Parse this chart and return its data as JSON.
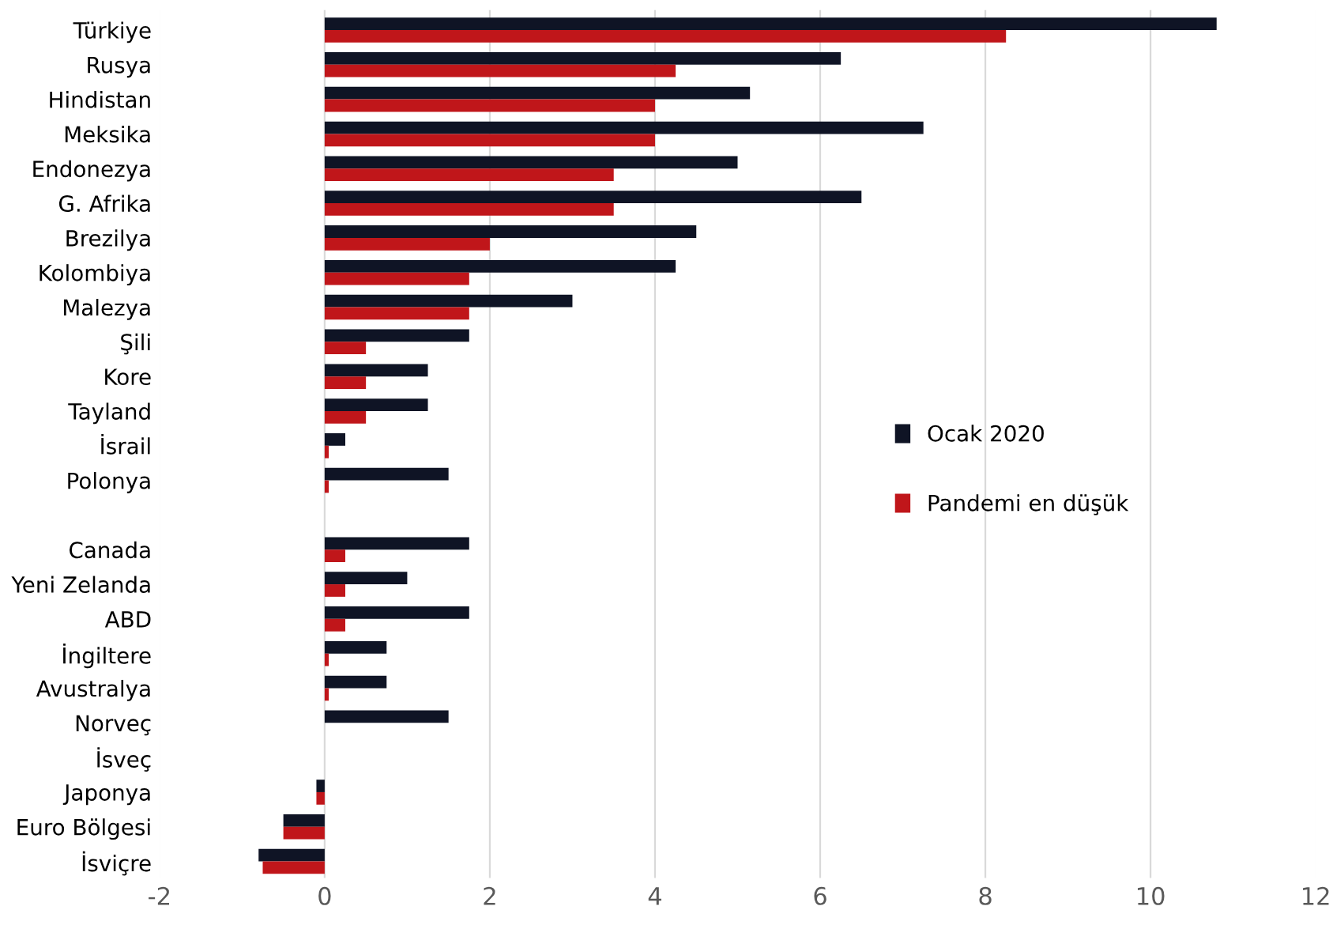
{
  "chart_data": {
    "type": "bar",
    "orientation": "horizontal",
    "categories": [
      "Türkiye",
      "Rusya",
      "Hindistan",
      "Meksika",
      "Endonezya",
      "G. Afrika",
      "Brezilya",
      "Kolombiya",
      "Malezya",
      "Şili",
      "Kore",
      "Tayland",
      "İsrail",
      "Polonya",
      null,
      "Canada",
      "Yeni Zelanda",
      "ABD",
      "İngiltere",
      "Avustralya",
      "Norveç",
      "İsveç",
      "Japonya",
      "Euro Bölgesi",
      "İsviçre"
    ],
    "series": [
      {
        "name": "Ocak 2020",
        "color": "#0f1425",
        "values": [
          10.8,
          6.25,
          5.15,
          7.25,
          5.0,
          6.5,
          4.5,
          4.25,
          3.0,
          1.75,
          1.25,
          1.25,
          0.25,
          1.5,
          null,
          1.75,
          1.0,
          1.75,
          0.75,
          0.75,
          1.5,
          0,
          -0.1,
          -0.5,
          -0.8
        ]
      },
      {
        "name": "Pandemi en düşük",
        "color": "#c0161a",
        "values": [
          8.25,
          4.25,
          4.0,
          4.0,
          3.5,
          3.5,
          2.0,
          1.75,
          1.75,
          0.5,
          0.5,
          0.5,
          0.05,
          0.05,
          null,
          0.25,
          0.25,
          0.25,
          0.05,
          0.05,
          0,
          0,
          -0.1,
          -0.5,
          -0.75
        ]
      }
    ],
    "xlim": [
      -2,
      12
    ],
    "xticks": [
      -2,
      0,
      2,
      4,
      6,
      8,
      10,
      12
    ],
    "grid": "x",
    "legend": "right"
  }
}
